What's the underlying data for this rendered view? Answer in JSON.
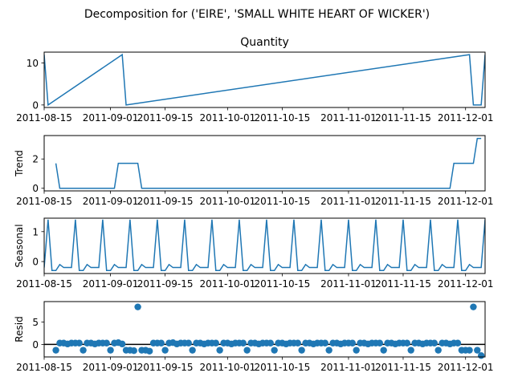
{
  "figure": {
    "suptitle": "Decomposition for ('EIRE', 'SMALL WHITE HEART OF WICKER')"
  },
  "chart_data": [
    {
      "type": "line",
      "id": "observed",
      "title": "Quantity",
      "ylabel": "",
      "xlim": [
        "2011-08-15",
        "2011-12-06"
      ],
      "ylim": [
        -0.6,
        12.6
      ],
      "yticks": [
        0,
        10
      ],
      "xticks": [
        "2011-08-15",
        "2011-09-01",
        "2011-09-15",
        "2011-10-01",
        "2011-10-15",
        "2011-11-01",
        "2011-11-15",
        "2011-12-01"
      ],
      "series": [
        {
          "x": [
            "2011-08-15",
            "2011-08-16",
            "2011-09-04",
            "2011-09-05",
            "2011-12-02",
            "2011-12-03",
            "2011-12-05",
            "2011-12-06"
          ],
          "values": [
            12,
            0,
            12,
            0,
            12,
            0,
            0,
            12
          ]
        }
      ]
    },
    {
      "type": "line",
      "id": "trend",
      "title": "",
      "ylabel": "Trend",
      "xlim": [
        "2011-08-15",
        "2011-12-06"
      ],
      "ylim": [
        -0.18,
        3.6
      ],
      "yticks": [
        0,
        2
      ],
      "xticks": [
        "2011-08-15",
        "2011-09-01",
        "2011-09-15",
        "2011-10-01",
        "2011-10-15",
        "2011-11-01",
        "2011-11-15",
        "2011-12-01"
      ],
      "series": [
        {
          "x": [
            "2011-08-18",
            "2011-08-19",
            "2011-09-02",
            "2011-09-03",
            "2011-09-08",
            "2011-09-09",
            "2011-11-27",
            "2011-11-28",
            "2011-12-03",
            "2011-12-04",
            "2011-12-05"
          ],
          "values": [
            1.7,
            0,
            0,
            1.7,
            1.7,
            0,
            0,
            1.7,
            1.7,
            3.4,
            3.4
          ]
        }
      ]
    },
    {
      "type": "line",
      "id": "seasonal",
      "title": "",
      "ylabel": "Seasonal",
      "xlim": [
        "2011-08-15",
        "2011-12-06"
      ],
      "ylim": [
        -0.4,
        1.45
      ],
      "yticks": [
        0,
        1
      ],
      "xticks": [
        "2011-08-15",
        "2011-09-01",
        "2011-09-15",
        "2011-10-01",
        "2011-10-15",
        "2011-11-01",
        "2011-11-15",
        "2011-12-01"
      ],
      "period": 7,
      "pattern": [
        -0.2,
        1.4,
        -0.3,
        -0.3,
        -0.1,
        -0.2,
        -0.2
      ],
      "first_x": "2011-08-15",
      "last_x": "2011-12-06"
    },
    {
      "type": "scatter",
      "id": "resid",
      "title": "",
      "ylabel": "Resid",
      "xlim": [
        "2011-08-15",
        "2011-12-06"
      ],
      "ylim": [
        -2.8,
        9.6
      ],
      "yticks": [
        0,
        5
      ],
      "zero_line": true,
      "xticks": [
        "2011-08-15",
        "2011-09-01",
        "2011-09-15",
        "2011-10-01",
        "2011-10-15",
        "2011-11-01",
        "2011-11-15",
        "2011-12-01"
      ],
      "series": [
        {
          "x": [
            "2011-08-18",
            "2011-08-19",
            "2011-08-20",
            "2011-08-21",
            "2011-08-22",
            "2011-08-23",
            "2011-08-24",
            "2011-08-25",
            "2011-08-26",
            "2011-08-27",
            "2011-08-28",
            "2011-08-29",
            "2011-08-30",
            "2011-08-31",
            "2011-09-01",
            "2011-09-02",
            "2011-09-03",
            "2011-09-04",
            "2011-09-05",
            "2011-09-06",
            "2011-09-07",
            "2011-09-08",
            "2011-09-09",
            "2011-09-10",
            "2011-09-11",
            "2011-09-12",
            "2011-09-13",
            "2011-09-14",
            "2011-09-15",
            "2011-09-16",
            "2011-09-17",
            "2011-09-18",
            "2011-09-19",
            "2011-09-20",
            "2011-09-21",
            "2011-09-22",
            "2011-09-23",
            "2011-09-24",
            "2011-09-25",
            "2011-09-26",
            "2011-09-27",
            "2011-09-28",
            "2011-09-29",
            "2011-09-30",
            "2011-10-01",
            "2011-10-02",
            "2011-10-03",
            "2011-10-04",
            "2011-10-05",
            "2011-10-06",
            "2011-10-07",
            "2011-10-08",
            "2011-10-09",
            "2011-10-10",
            "2011-10-11",
            "2011-10-12",
            "2011-10-13",
            "2011-10-14",
            "2011-10-15",
            "2011-10-16",
            "2011-10-17",
            "2011-10-18",
            "2011-10-19",
            "2011-10-20",
            "2011-10-21",
            "2011-10-22",
            "2011-10-23",
            "2011-10-24",
            "2011-10-25",
            "2011-10-26",
            "2011-10-27",
            "2011-10-28",
            "2011-10-29",
            "2011-10-30",
            "2011-10-31",
            "2011-11-01",
            "2011-11-02",
            "2011-11-03",
            "2011-11-04",
            "2011-11-05",
            "2011-11-06",
            "2011-11-07",
            "2011-11-08",
            "2011-11-09",
            "2011-11-10",
            "2011-11-11",
            "2011-11-12",
            "2011-11-13",
            "2011-11-14",
            "2011-11-15",
            "2011-11-16",
            "2011-11-17",
            "2011-11-18",
            "2011-11-19",
            "2011-11-20",
            "2011-11-21",
            "2011-11-22",
            "2011-11-23",
            "2011-11-24",
            "2011-11-25",
            "2011-11-26",
            "2011-11-27",
            "2011-11-28",
            "2011-11-29",
            "2011-11-30",
            "2011-12-01",
            "2011-12-02",
            "2011-12-03",
            "2011-12-04",
            "2011-12-05"
          ],
          "values": [
            -1.3,
            0.3,
            0.3,
            0.1,
            0.3,
            0.3,
            0.3,
            -1.3,
            0.3,
            0.3,
            0.1,
            0.3,
            0.3,
            0.3,
            -1.3,
            0.3,
            0.4,
            0.1,
            -1.3,
            -1.3,
            -1.4,
            8.4,
            -1.3,
            -1.3,
            -1.5,
            0.3,
            0.3,
            0.3,
            -1.3,
            0.3,
            0.4,
            0.1,
            0.3,
            0.3,
            0.3,
            -1.3,
            0.3,
            0.3,
            0.1,
            0.3,
            0.3,
            0.3,
            -1.3,
            0.3,
            0.3,
            0.1,
            0.3,
            0.3,
            0.3,
            -1.3,
            0.3,
            0.3,
            0.1,
            0.3,
            0.3,
            0.3,
            -1.3,
            0.3,
            0.3,
            0.1,
            0.3,
            0.3,
            0.3,
            -1.3,
            0.3,
            0.3,
            0.1,
            0.3,
            0.3,
            0.3,
            -1.3,
            0.3,
            0.3,
            0.1,
            0.3,
            0.3,
            0.3,
            -1.3,
            0.3,
            0.3,
            0.1,
            0.3,
            0.3,
            0.3,
            -1.3,
            0.3,
            0.3,
            0.1,
            0.3,
            0.3,
            0.3,
            -1.3,
            0.3,
            0.3,
            0.1,
            0.3,
            0.3,
            0.3,
            -1.3,
            0.3,
            0.3,
            0.1,
            0.3,
            0.3,
            -1.3,
            -1.3,
            -1.3,
            8.4,
            -1.3,
            -2.5
          ]
        }
      ]
    }
  ]
}
